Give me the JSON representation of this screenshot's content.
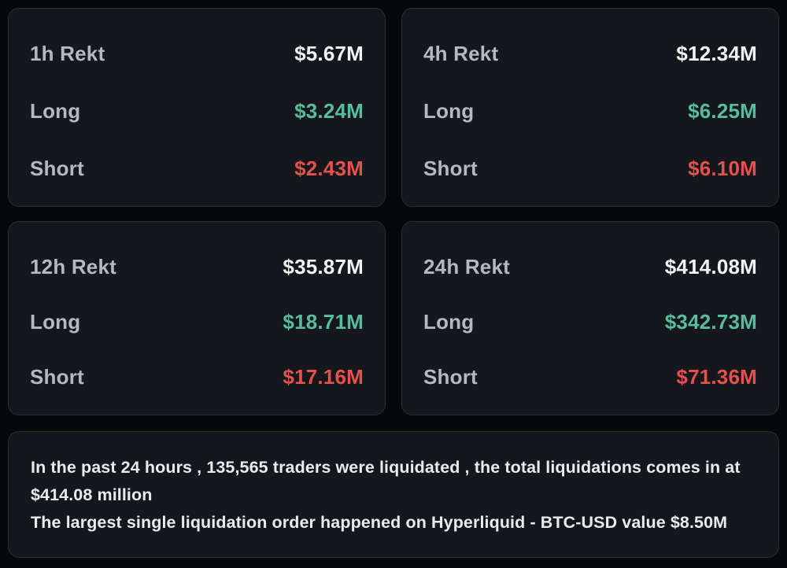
{
  "colors": {
    "page_bg": "#070809",
    "card_bg": "#15171c",
    "card_border": "#2b2e34",
    "label": "#b4b9c1",
    "value": "#f2f3f5",
    "long": "#57bd9b",
    "short": "#e4514e",
    "summary_text": "#e9ebee"
  },
  "cards": [
    {
      "title": "1h Rekt",
      "total": "$5.67M",
      "long_label": "Long",
      "long_value": "$3.24M",
      "short_label": "Short",
      "short_value": "$2.43M"
    },
    {
      "title": "4h Rekt",
      "total": "$12.34M",
      "long_label": "Long",
      "long_value": "$6.25M",
      "short_label": "Short",
      "short_value": "$6.10M"
    },
    {
      "title": "12h Rekt",
      "total": "$35.87M",
      "long_label": "Long",
      "long_value": "$18.71M",
      "short_label": "Short",
      "short_value": "$17.16M"
    },
    {
      "title": "24h Rekt",
      "total": "$414.08M",
      "long_label": "Long",
      "long_value": "$342.73M",
      "short_label": "Short",
      "short_value": "$71.36M"
    }
  ],
  "summary": {
    "line1": "In the past 24 hours , 135,565 traders were liquidated , the total liquidations comes in at $414.08 million",
    "line2": "The largest single liquidation order happened on Hyperliquid - BTC-USD value $8.50M"
  }
}
